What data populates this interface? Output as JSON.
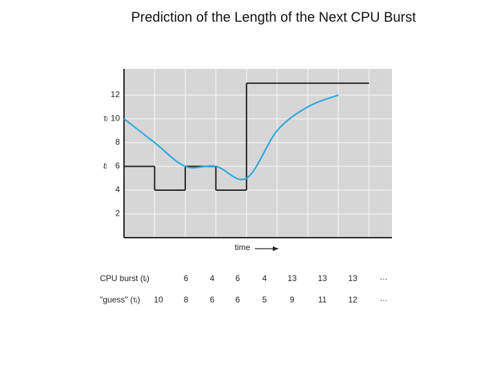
{
  "title": "Prediction of the Length of the Next CPU Burst",
  "chart_data": {
    "type": "line",
    "x_label": "time",
    "xlim": [
      0,
      8.75
    ],
    "xticks": [
      0,
      1,
      2,
      3,
      4,
      5,
      6,
      7,
      8
    ],
    "ylim": [
      0,
      14.2
    ],
    "yticks": [
      2,
      4,
      6,
      8,
      10,
      12
    ],
    "grid": true,
    "annotations": [
      "τᵢ",
      "tᵢ"
    ],
    "series": [
      {
        "name": "CPU burst (tᵢ)",
        "color": "#222222",
        "style": "step",
        "values": [
          6,
          4,
          6,
          4,
          13,
          13,
          13
        ]
      },
      {
        "name": "\"guess\" (τᵢ)",
        "color": "#29a8e0",
        "style": "smooth",
        "values": [
          10,
          8,
          6,
          6,
          5,
          9,
          11,
          12
        ]
      }
    ],
    "continuation": "…"
  }
}
